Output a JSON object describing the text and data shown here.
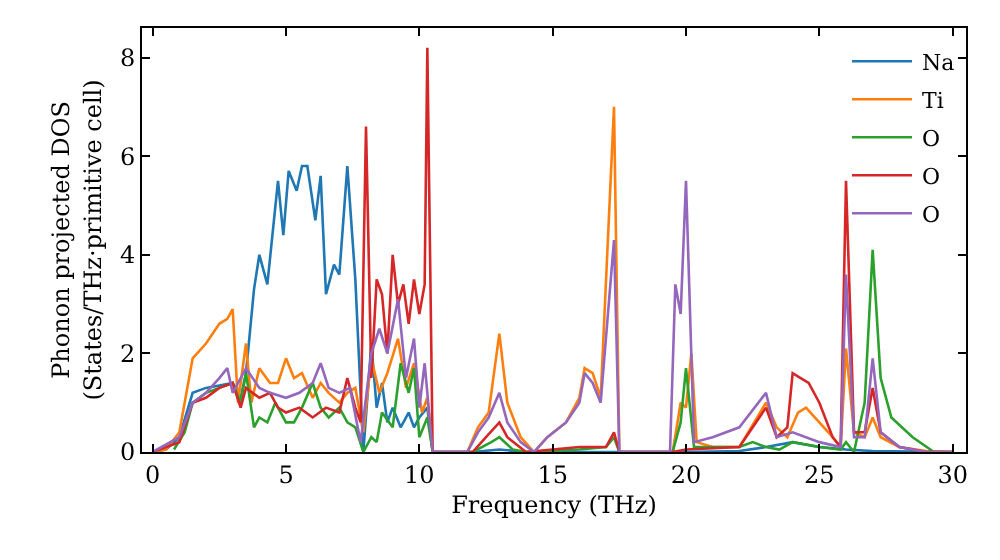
{
  "chart_data": {
    "type": "line",
    "xlabel": "Frequency (THz)",
    "ylabel": "Phonon projected DOS\n(States/THz·primitive cell)",
    "xlim": [
      -0.4,
      30.5
    ],
    "ylim": [
      0,
      8.6
    ],
    "xticks": [
      0,
      5,
      10,
      15,
      20,
      25,
      30
    ],
    "yticks": [
      0,
      2,
      4,
      6,
      8
    ],
    "legend": "top right",
    "marker": "none",
    "line_style": "solid",
    "series": [
      {
        "name": "Na",
        "color": "#1f77b4",
        "x": [
          0,
          0.5,
          1,
          1.5,
          2,
          2.5,
          3,
          3.3,
          3.5,
          3.8,
          4,
          4.3,
          4.7,
          4.9,
          5.1,
          5.4,
          5.6,
          5.8,
          6.1,
          6.3,
          6.5,
          6.8,
          7,
          7.3,
          7.6,
          7.9,
          8.2,
          8.4,
          8.6,
          8.8,
          9,
          9.3,
          9.6,
          9.8,
          10,
          10.3,
          10.5,
          12,
          13,
          14,
          20,
          22,
          23,
          24,
          25,
          26,
          27,
          30
        ],
        "values": [
          0,
          0.05,
          0.3,
          1.2,
          1.3,
          1.35,
          1.4,
          1.1,
          1.6,
          3.3,
          4.0,
          3.4,
          5.5,
          4.4,
          5.7,
          5.3,
          5.8,
          5.8,
          4.7,
          5.6,
          3.2,
          3.8,
          3.6,
          5.8,
          3.5,
          0,
          2.2,
          0.9,
          1.4,
          0.6,
          0.9,
          0.5,
          0.8,
          0.5,
          0.7,
          0.9,
          0,
          0,
          0.05,
          0,
          0,
          0.02,
          0.1,
          0.2,
          0.1,
          0.05,
          0.02,
          0
        ]
      },
      {
        "name": "Ti",
        "color": "#ff7f0e",
        "x": [
          0,
          0.5,
          1,
          1.5,
          2,
          2.5,
          2.8,
          3,
          3.2,
          3.5,
          3.7,
          4,
          4.4,
          4.7,
          5,
          5.3,
          5.6,
          6,
          6.3,
          6.6,
          7,
          7.3,
          7.6,
          7.9,
          8.2,
          8.5,
          8.8,
          9.2,
          9.5,
          9.8,
          10.1,
          10.3,
          10.5,
          11.8,
          12.2,
          12.6,
          13,
          13.3,
          13.8,
          14.3,
          14.8,
          15.5,
          16,
          16.2,
          16.5,
          16.8,
          17.3,
          17.5,
          19.5,
          19.8,
          20,
          20.2,
          20.4,
          21,
          22,
          23,
          23.4,
          23.8,
          24.2,
          24.5,
          25,
          25.5,
          25.8,
          26,
          26.3,
          26.7,
          27,
          27.3,
          28,
          29,
          30
        ],
        "values": [
          0,
          0.05,
          0.4,
          1.9,
          2.2,
          2.6,
          2.7,
          2.9,
          1.0,
          2.2,
          1.0,
          1.7,
          1.4,
          1.4,
          1.9,
          1.5,
          1.6,
          1.1,
          1.4,
          1.2,
          1.0,
          1.2,
          1.3,
          0.4,
          1.9,
          1.2,
          1.6,
          2.3,
          1.3,
          1.8,
          0.8,
          1.1,
          0,
          0,
          0.5,
          0.8,
          2.4,
          1.0,
          0.3,
          0,
          0.3,
          0.6,
          1.1,
          1.7,
          1.6,
          1.1,
          7.0,
          0,
          0,
          1.0,
          0.9,
          2.0,
          0.2,
          0.1,
          0.1,
          1.0,
          0.5,
          0.3,
          0.8,
          0.9,
          0.6,
          0.3,
          0.1,
          2.1,
          0.4,
          0.3,
          0.7,
          0.3,
          0.1,
          0.02,
          0
        ]
      },
      {
        "name": "O",
        "color": "#2ca02c",
        "x": [
          0.8,
          1.2,
          1.5,
          2,
          2.5,
          3,
          3.3,
          3.5,
          3.8,
          4,
          4.3,
          4.6,
          5,
          5.3,
          5.6,
          6,
          6.3,
          6.6,
          7,
          7.3,
          7.6,
          7.9,
          8.2,
          8.4,
          8.6,
          9,
          9.3,
          9.6,
          9.8,
          10,
          10.3,
          10.5,
          12,
          12.7,
          13,
          13.5,
          14,
          16,
          17,
          17.3,
          17.5,
          19.5,
          19.8,
          20,
          20.3,
          22,
          22.5,
          23,
          23.5,
          24,
          25,
          25.8,
          26,
          26.3,
          26.7,
          27,
          27.3,
          27.7,
          28.5,
          29.3,
          30
        ],
        "values": [
          0.05,
          0.4,
          1.0,
          1.2,
          1.3,
          1.4,
          1.0,
          1.6,
          0.5,
          0.7,
          0.6,
          1.0,
          0.6,
          0.6,
          0.9,
          1.4,
          0.9,
          0.7,
          0.9,
          0.6,
          0.5,
          0,
          0.3,
          0.2,
          0.8,
          0.5,
          1.8,
          1.2,
          1.7,
          0.3,
          0.7,
          0,
          0,
          0.2,
          0.3,
          0.05,
          0,
          0.05,
          0.1,
          0.3,
          0,
          0,
          0.6,
          1.7,
          0.1,
          0.1,
          0.2,
          0.1,
          0.05,
          0.2,
          0.1,
          0.05,
          0.2,
          0,
          1.0,
          4.1,
          1.5,
          0.7,
          0.3,
          0,
          0
        ]
      },
      {
        "name": "O",
        "color": "#d62728",
        "x": [
          0,
          1,
          1.5,
          2,
          2.5,
          3,
          3.3,
          3.5,
          4,
          4.4,
          4.7,
          5,
          5.5,
          6,
          6.5,
          7,
          7.3,
          7.6,
          7.8,
          8,
          8.2,
          8.4,
          8.6,
          8.8,
          9,
          9.2,
          9.4,
          9.6,
          9.8,
          10,
          10.2,
          10.3,
          10.5,
          12,
          12.5,
          13,
          13.3,
          14,
          16,
          17,
          17.3,
          17.5,
          19.5,
          20,
          22,
          23,
          23.4,
          23.8,
          24,
          24.3,
          24.6,
          25,
          25.5,
          25.8,
          26,
          26.3,
          26.7,
          27,
          27.3,
          28,
          29,
          30
        ],
        "values": [
          0,
          0.2,
          1.0,
          1.1,
          1.3,
          1.4,
          0.9,
          1.3,
          1.1,
          1.2,
          0.9,
          0.8,
          0.9,
          0.7,
          0.9,
          0.8,
          1.5,
          0.9,
          0.6,
          6.6,
          1.5,
          3.5,
          3.2,
          2.0,
          4.0,
          3.0,
          3.4,
          2.6,
          3.5,
          2.8,
          3.4,
          8.2,
          0,
          0,
          0.3,
          0.6,
          0.3,
          0,
          0.1,
          0.1,
          0.4,
          0,
          0,
          0.05,
          0.1,
          0.9,
          0.3,
          0.5,
          1.6,
          1.5,
          1.4,
          1.0,
          0.3,
          0.1,
          5.5,
          0.4,
          0.4,
          1.3,
          0.4,
          0.1,
          0,
          0
        ]
      },
      {
        "name": "O",
        "color": "#9467bd",
        "x": [
          0,
          1,
          1.5,
          2,
          2.5,
          2.8,
          3,
          3.5,
          4,
          4.4,
          5,
          5.5,
          6,
          6.3,
          6.6,
          7,
          7.4,
          7.8,
          8.2,
          8.5,
          8.8,
          9.2,
          9.5,
          9.8,
          10,
          10.2,
          10.5,
          11.8,
          12.2,
          12.6,
          13,
          13.3,
          13.8,
          14.3,
          14.8,
          15.5,
          16,
          16.2,
          16.5,
          16.8,
          17.3,
          17.5,
          19.4,
          19.6,
          19.8,
          20,
          20.3,
          21,
          22,
          23,
          23.4,
          24,
          25,
          25.8,
          26,
          26.3,
          26.7,
          27,
          27.3,
          28,
          29,
          30
        ],
        "values": [
          0,
          0.3,
          1.0,
          1.2,
          1.5,
          1.7,
          1.2,
          1.7,
          1.3,
          1.2,
          1.1,
          1.2,
          1.4,
          1.8,
          1.3,
          1.2,
          1.3,
          0.2,
          2.0,
          2.5,
          2.0,
          3.1,
          1.5,
          2.3,
          0.9,
          1.8,
          0,
          0,
          0.4,
          0.7,
          1.2,
          0.6,
          0.2,
          0,
          0.3,
          0.6,
          1.0,
          1.6,
          1.4,
          1.0,
          4.3,
          0,
          0,
          3.4,
          2.8,
          5.5,
          0.2,
          0.3,
          0.5,
          1.2,
          0.3,
          0.4,
          0.2,
          0.1,
          3.6,
          0.3,
          0.3,
          1.9,
          0.4,
          0.1,
          0,
          0
        ]
      }
    ]
  }
}
